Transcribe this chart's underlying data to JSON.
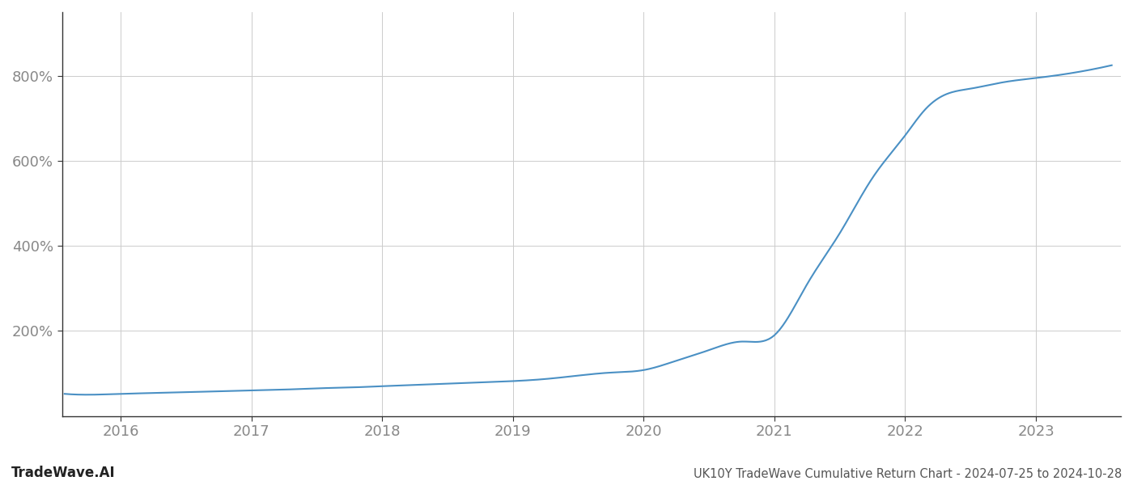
{
  "title": "UK10Y TradeWave Cumulative Return Chart - 2024-07-25 to 2024-10-28",
  "watermark": "TradeWave.AI",
  "line_color": "#4a90c4",
  "background_color": "#ffffff",
  "grid_color": "#cccccc",
  "tick_color": "#888888",
  "x_years": [
    2016,
    2017,
    2018,
    2019,
    2020,
    2021,
    2022,
    2023
  ],
  "y_ticks": [
    200,
    400,
    600,
    800
  ],
  "xlim": [
    2015.55,
    2023.65
  ],
  "ylim": [
    0,
    950
  ],
  "data_x": [
    2015.57,
    2015.75,
    2016.0,
    2016.25,
    2016.5,
    2016.75,
    2017.0,
    2017.25,
    2017.5,
    2017.75,
    2018.0,
    2018.25,
    2018.5,
    2018.75,
    2019.0,
    2019.25,
    2019.5,
    2019.75,
    2020.0,
    2020.25,
    2020.5,
    2020.75,
    2021.0,
    2021.25,
    2021.5,
    2021.75,
    2022.0,
    2022.15,
    2022.3,
    2022.5,
    2022.75,
    2023.0,
    2023.3,
    2023.58
  ],
  "data_y": [
    52,
    50,
    52,
    54,
    56,
    58,
    60,
    62,
    65,
    67,
    70,
    73,
    76,
    79,
    82,
    87,
    95,
    102,
    108,
    130,
    155,
    175,
    190,
    310,
    430,
    560,
    660,
    720,
    755,
    770,
    785,
    795,
    808,
    825
  ]
}
